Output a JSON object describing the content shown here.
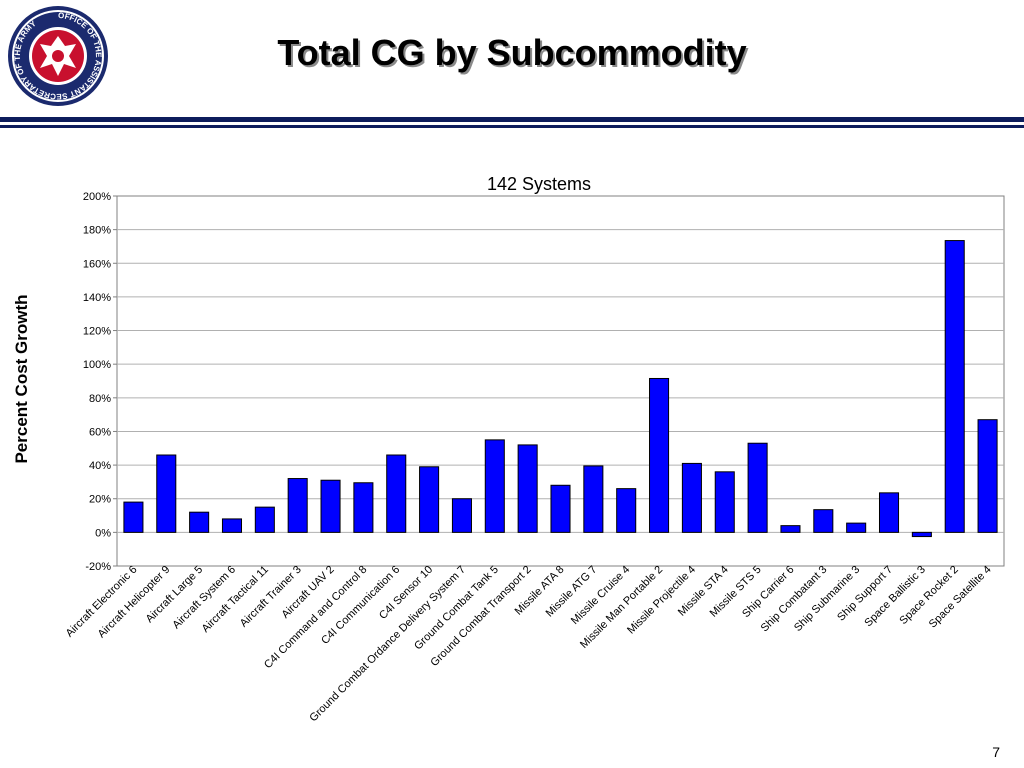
{
  "slide": {
    "title": "Total CG by Subcommodity",
    "page_number": "7",
    "logo": {
      "icon": "army-seal-icon",
      "text": "OFFICE OF THE ASSISTANT SECRETARY OF THE ARMY"
    },
    "colors": {
      "rule": "#0d1c5c",
      "bar": "#0000ff"
    }
  },
  "chart_data": {
    "type": "bar",
    "title": "142 Systems",
    "ylabel": "Percent Cost Growth",
    "xlabel": "",
    "ylim": [
      -20,
      200
    ],
    "yticks": [
      "-20%",
      "0%",
      "20%",
      "40%",
      "60%",
      "80%",
      "100%",
      "120%",
      "140%",
      "160%",
      "180%",
      "200%"
    ],
    "grid": true,
    "legend": "none",
    "categories": [
      "Aircraft Electronic 6",
      "Aircraft Helicopter 9",
      "Aircraft Large 5",
      "Aircraft System 6",
      "Aircraft Tactical 11",
      "Aircraft Trainer 3",
      "Aircraft UAV 2",
      "C4I Command and Control 8",
      "C4I Communication 6",
      "C4I Sensor 10",
      "Ground Combat Ordance Delivery System 7",
      "Ground Combat Tank 5",
      "Ground Combat Transport 2",
      "Missile ATA 8",
      "Missile ATG 7",
      "Missile Cruise 4",
      "Missile Man Portable 2",
      "Missile Projectile 4",
      "Missile STA 4",
      "Missile STS 5",
      "Ship Carrier 6",
      "Ship Combatant 3",
      "Ship Submarine 3",
      "Ship Support 7",
      "Space Ballistic 3",
      "Space Rocket 2",
      "Space Satellite 4"
    ],
    "values": [
      18,
      46,
      12,
      8,
      15,
      32,
      31,
      29.5,
      46,
      39,
      20,
      55,
      52,
      28,
      39.5,
      26,
      91.5,
      41,
      36,
      53,
      4,
      13.5,
      5.5,
      23.5,
      -2.5,
      173.5,
      67
    ]
  }
}
